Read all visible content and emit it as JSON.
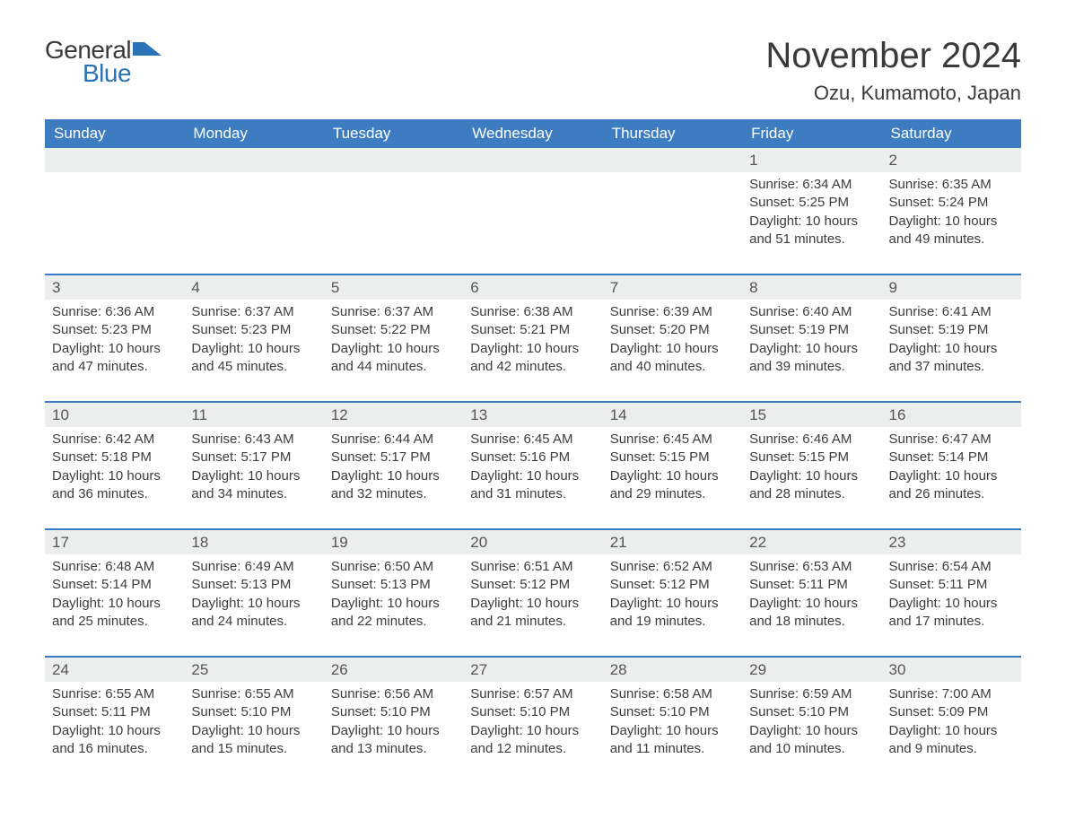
{
  "brand": {
    "main": "General",
    "sub": "Blue"
  },
  "title": "November 2024",
  "location": "Ozu, Kumamoto, Japan",
  "colors": {
    "header_bg": "#3d7cc0",
    "header_text": "#ffffff",
    "daynum_bg": "#eceded",
    "row_border": "#3d7cc0",
    "body_text": "#3c3c3c",
    "brand_blue": "#2b73b8",
    "page_bg": "#ffffff"
  },
  "weekdays": [
    "Sunday",
    "Monday",
    "Tuesday",
    "Wednesday",
    "Thursday",
    "Friday",
    "Saturday"
  ],
  "weeks": [
    [
      null,
      null,
      null,
      null,
      null,
      {
        "n": "1",
        "sr": "6:34 AM",
        "ss": "5:25 PM",
        "dl": "10 hours and 51 minutes."
      },
      {
        "n": "2",
        "sr": "6:35 AM",
        "ss": "5:24 PM",
        "dl": "10 hours and 49 minutes."
      }
    ],
    [
      {
        "n": "3",
        "sr": "6:36 AM",
        "ss": "5:23 PM",
        "dl": "10 hours and 47 minutes."
      },
      {
        "n": "4",
        "sr": "6:37 AM",
        "ss": "5:23 PM",
        "dl": "10 hours and 45 minutes."
      },
      {
        "n": "5",
        "sr": "6:37 AM",
        "ss": "5:22 PM",
        "dl": "10 hours and 44 minutes."
      },
      {
        "n": "6",
        "sr": "6:38 AM",
        "ss": "5:21 PM",
        "dl": "10 hours and 42 minutes."
      },
      {
        "n": "7",
        "sr": "6:39 AM",
        "ss": "5:20 PM",
        "dl": "10 hours and 40 minutes."
      },
      {
        "n": "8",
        "sr": "6:40 AM",
        "ss": "5:19 PM",
        "dl": "10 hours and 39 minutes."
      },
      {
        "n": "9",
        "sr": "6:41 AM",
        "ss": "5:19 PM",
        "dl": "10 hours and 37 minutes."
      }
    ],
    [
      {
        "n": "10",
        "sr": "6:42 AM",
        "ss": "5:18 PM",
        "dl": "10 hours and 36 minutes."
      },
      {
        "n": "11",
        "sr": "6:43 AM",
        "ss": "5:17 PM",
        "dl": "10 hours and 34 minutes."
      },
      {
        "n": "12",
        "sr": "6:44 AM",
        "ss": "5:17 PM",
        "dl": "10 hours and 32 minutes."
      },
      {
        "n": "13",
        "sr": "6:45 AM",
        "ss": "5:16 PM",
        "dl": "10 hours and 31 minutes."
      },
      {
        "n": "14",
        "sr": "6:45 AM",
        "ss": "5:15 PM",
        "dl": "10 hours and 29 minutes."
      },
      {
        "n": "15",
        "sr": "6:46 AM",
        "ss": "5:15 PM",
        "dl": "10 hours and 28 minutes."
      },
      {
        "n": "16",
        "sr": "6:47 AM",
        "ss": "5:14 PM",
        "dl": "10 hours and 26 minutes."
      }
    ],
    [
      {
        "n": "17",
        "sr": "6:48 AM",
        "ss": "5:14 PM",
        "dl": "10 hours and 25 minutes."
      },
      {
        "n": "18",
        "sr": "6:49 AM",
        "ss": "5:13 PM",
        "dl": "10 hours and 24 minutes."
      },
      {
        "n": "19",
        "sr": "6:50 AM",
        "ss": "5:13 PM",
        "dl": "10 hours and 22 minutes."
      },
      {
        "n": "20",
        "sr": "6:51 AM",
        "ss": "5:12 PM",
        "dl": "10 hours and 21 minutes."
      },
      {
        "n": "21",
        "sr": "6:52 AM",
        "ss": "5:12 PM",
        "dl": "10 hours and 19 minutes."
      },
      {
        "n": "22",
        "sr": "6:53 AM",
        "ss": "5:11 PM",
        "dl": "10 hours and 18 minutes."
      },
      {
        "n": "23",
        "sr": "6:54 AM",
        "ss": "5:11 PM",
        "dl": "10 hours and 17 minutes."
      }
    ],
    [
      {
        "n": "24",
        "sr": "6:55 AM",
        "ss": "5:11 PM",
        "dl": "10 hours and 16 minutes."
      },
      {
        "n": "25",
        "sr": "6:55 AM",
        "ss": "5:10 PM",
        "dl": "10 hours and 15 minutes."
      },
      {
        "n": "26",
        "sr": "6:56 AM",
        "ss": "5:10 PM",
        "dl": "10 hours and 13 minutes."
      },
      {
        "n": "27",
        "sr": "6:57 AM",
        "ss": "5:10 PM",
        "dl": "10 hours and 12 minutes."
      },
      {
        "n": "28",
        "sr": "6:58 AM",
        "ss": "5:10 PM",
        "dl": "10 hours and 11 minutes."
      },
      {
        "n": "29",
        "sr": "6:59 AM",
        "ss": "5:10 PM",
        "dl": "10 hours and 10 minutes."
      },
      {
        "n": "30",
        "sr": "7:00 AM",
        "ss": "5:09 PM",
        "dl": "10 hours and 9 minutes."
      }
    ]
  ],
  "labels": {
    "sunrise": "Sunrise: ",
    "sunset": "Sunset: ",
    "daylight": "Daylight: "
  }
}
